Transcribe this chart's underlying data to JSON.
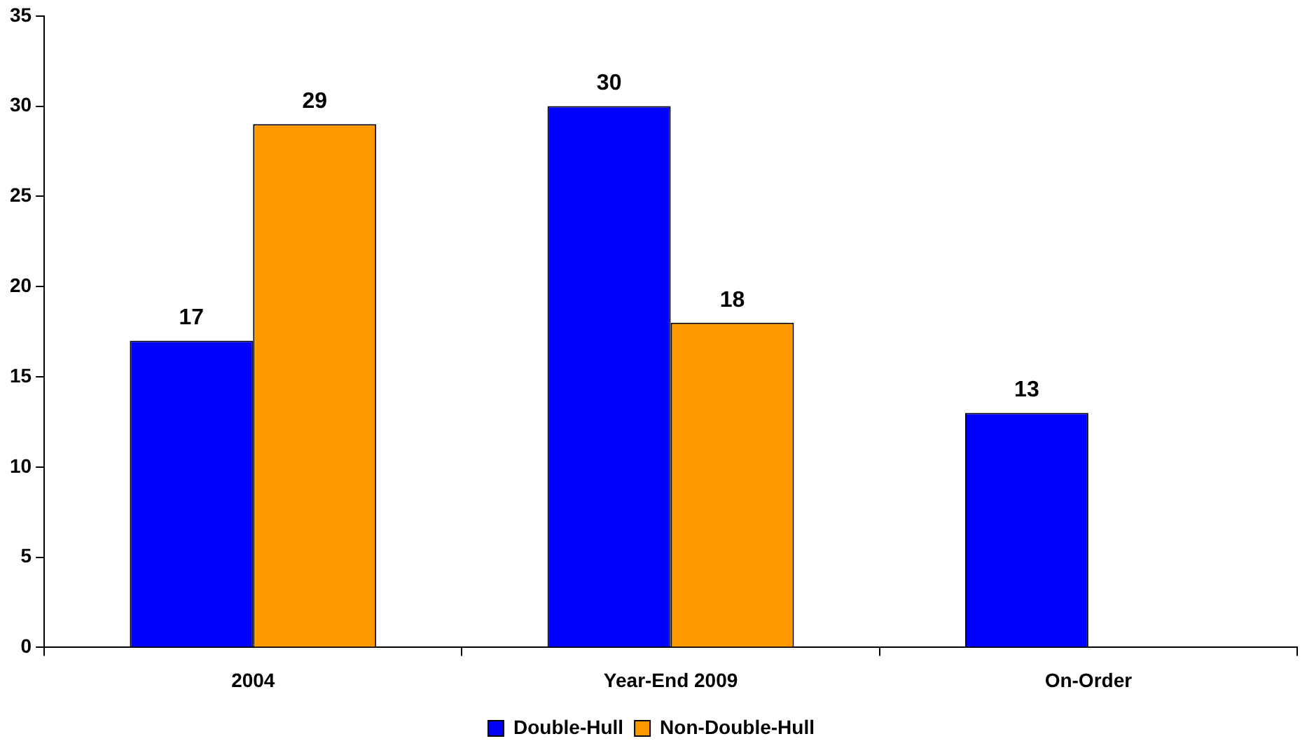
{
  "chart_data": {
    "type": "bar",
    "categories": [
      "2004",
      "Year-End 2009",
      "On-Order"
    ],
    "series": [
      {
        "name": "Double-Hull",
        "color": "#0000ff",
        "values": [
          17,
          30,
          13
        ]
      },
      {
        "name": "Non-Double-Hull",
        "color": "#ff9900",
        "values": [
          29,
          18,
          null
        ]
      }
    ],
    "ylim": [
      0,
      35
    ],
    "yticks": [
      0,
      5,
      10,
      15,
      20,
      25,
      30,
      35
    ],
    "data_labels": true,
    "legend": "bottom"
  }
}
